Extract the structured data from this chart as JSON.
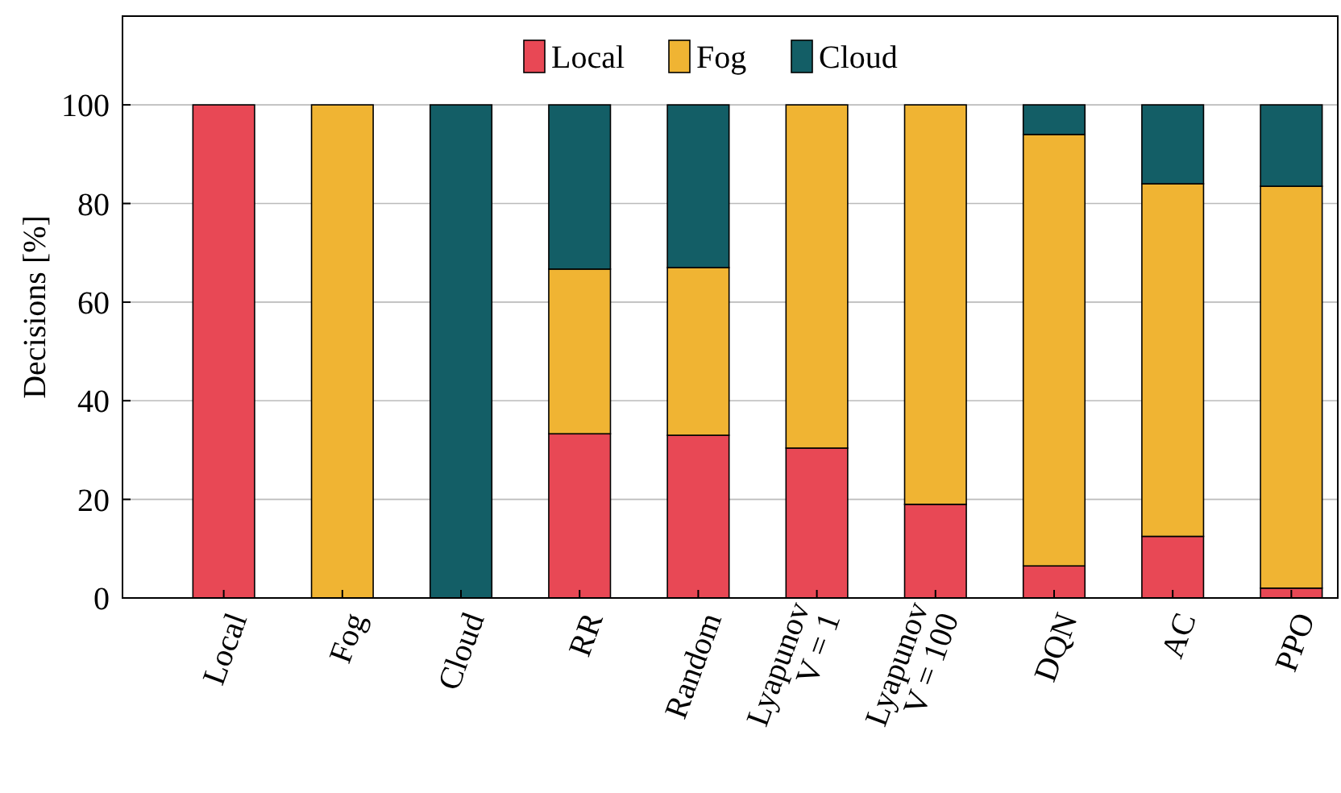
{
  "chart_data": {
    "type": "bar",
    "stacked": true,
    "ylabel": "Decisions [%]",
    "categories": [
      "Local",
      "Fog",
      "Cloud",
      "RR",
      "Random",
      "Lyapunov\nV = 1",
      "Lyapunov\nV = 100",
      "DQN",
      "AC",
      "PPO"
    ],
    "series": [
      {
        "name": "Local",
        "color": "#e84855",
        "values": [
          100,
          0,
          0,
          33.3,
          33,
          30.4,
          19,
          6.5,
          12.5,
          2
        ]
      },
      {
        "name": "Fog",
        "color": "#f0b433",
        "values": [
          0,
          100,
          0,
          33.4,
          34,
          69.6,
          81,
          87.5,
          71.5,
          81.5
        ]
      },
      {
        "name": "Cloud",
        "color": "#135e66",
        "values": [
          0,
          0,
          100,
          33.3,
          33,
          0,
          0,
          6,
          16,
          16.5
        ]
      }
    ],
    "ylim": [
      0,
      118
    ],
    "yticks": [
      0,
      20,
      40,
      60,
      80,
      100
    ],
    "grid": "y",
    "legend": "top"
  }
}
